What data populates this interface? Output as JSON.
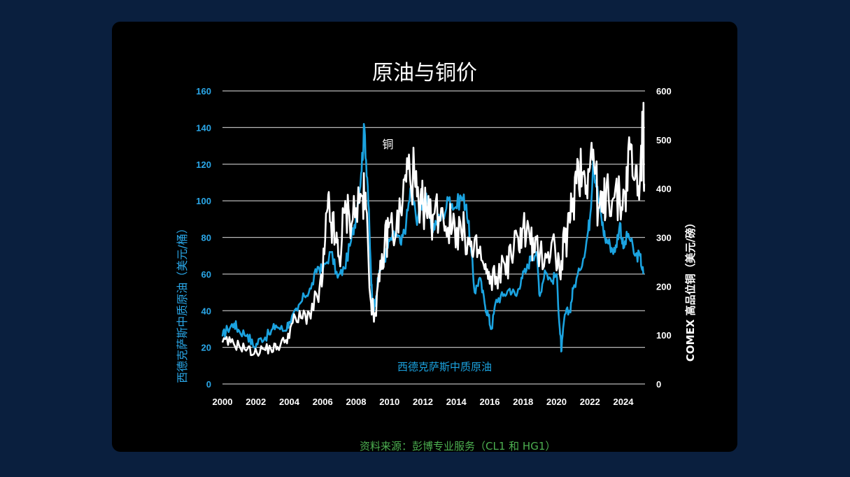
{
  "colors": {
    "page_bg": "#0a1f3e",
    "card_bg": "#000000",
    "oil": "#1ba3e0",
    "copper": "#ffffff",
    "left_axis": "#2aa7e8",
    "right_axis": "#ffffff",
    "source": "#4caf50"
  },
  "chart_data": {
    "type": "line",
    "title": "原油与铜价",
    "ylabel_left": "西德克萨斯中质原油（美元/桶）",
    "ylabel_right": "COMEX 高品位铜（美元/磅）",
    "source": "资料来源：彭博专业服务（CL1 和 HG1）",
    "x_ticks": [
      "2000",
      "2002",
      "2004",
      "2006",
      "2008",
      "2010",
      "2012",
      "2014",
      "2016",
      "2018",
      "2020",
      "2022",
      "2024"
    ],
    "xlim": [
      2000,
      2025.3
    ],
    "y_left_ticks": [
      "0",
      "20",
      "40",
      "60",
      "80",
      "100",
      "120",
      "140",
      "160"
    ],
    "y_left_lim": [
      0,
      160
    ],
    "y_right_ticks": [
      "0",
      "100",
      "200",
      "300",
      "400",
      "500",
      "600"
    ],
    "y_right_lim": [
      0,
      600
    ],
    "grid": true,
    "series": [
      {
        "name": "西德克萨斯中质原油",
        "axis": "left",
        "points": [
          [
            2000.0,
            26
          ],
          [
            2000.3,
            30
          ],
          [
            2000.7,
            33
          ],
          [
            2001.0,
            29
          ],
          [
            2001.5,
            27
          ],
          [
            2001.9,
            20
          ],
          [
            2002.3,
            25
          ],
          [
            2002.8,
            27
          ],
          [
            2003.2,
            32
          ],
          [
            2003.7,
            29
          ],
          [
            2004.0,
            34
          ],
          [
            2004.5,
            40
          ],
          [
            2004.9,
            48
          ],
          [
            2005.3,
            52
          ],
          [
            2005.7,
            64
          ],
          [
            2006.0,
            62
          ],
          [
            2006.5,
            72
          ],
          [
            2006.9,
            58
          ],
          [
            2007.3,
            63
          ],
          [
            2007.7,
            78
          ],
          [
            2008.0,
            92
          ],
          [
            2008.3,
            115
          ],
          [
            2008.5,
            140
          ],
          [
            2008.7,
            108
          ],
          [
            2008.9,
            58
          ],
          [
            2009.0,
            40
          ],
          [
            2009.2,
            48
          ],
          [
            2009.4,
            62
          ],
          [
            2009.7,
            68
          ],
          [
            2010.0,
            78
          ],
          [
            2010.4,
            82
          ],
          [
            2010.7,
            76
          ],
          [
            2011.0,
            88
          ],
          [
            2011.3,
            108
          ],
          [
            2011.6,
            90
          ],
          [
            2011.9,
            98
          ],
          [
            2012.2,
            104
          ],
          [
            2012.5,
            85
          ],
          [
            2012.8,
            88
          ],
          [
            2013.2,
            92
          ],
          [
            2013.6,
            102
          ],
          [
            2013.9,
            96
          ],
          [
            2014.3,
            102
          ],
          [
            2014.6,
            98
          ],
          [
            2014.9,
            72
          ],
          [
            2015.1,
            50
          ],
          [
            2015.4,
            58
          ],
          [
            2015.7,
            44
          ],
          [
            2015.9,
            38
          ],
          [
            2016.1,
            30
          ],
          [
            2016.4,
            46
          ],
          [
            2016.8,
            48
          ],
          [
            2017.2,
            52
          ],
          [
            2017.6,
            48
          ],
          [
            2017.9,
            58
          ],
          [
            2018.2,
            62
          ],
          [
            2018.5,
            70
          ],
          [
            2018.8,
            72
          ],
          [
            2019.0,
            48
          ],
          [
            2019.3,
            62
          ],
          [
            2019.7,
            56
          ],
          [
            2020.0,
            60
          ],
          [
            2020.2,
            30
          ],
          [
            2020.3,
            18
          ],
          [
            2020.5,
            38
          ],
          [
            2020.8,
            40
          ],
          [
            2021.0,
            52
          ],
          [
            2021.4,
            62
          ],
          [
            2021.8,
            78
          ],
          [
            2022.0,
            90
          ],
          [
            2022.2,
            122
          ],
          [
            2022.4,
            108
          ],
          [
            2022.7,
            90
          ],
          [
            2022.9,
            80
          ],
          [
            2023.2,
            76
          ],
          [
            2023.5,
            72
          ],
          [
            2023.8,
            88
          ],
          [
            2024.0,
            74
          ],
          [
            2024.3,
            82
          ],
          [
            2024.7,
            70
          ],
          [
            2025.0,
            70
          ],
          [
            2025.2,
            60
          ]
        ]
      },
      {
        "name": "铜",
        "axis": "right",
        "points": [
          [
            2000.0,
            85
          ],
          [
            2000.5,
            85
          ],
          [
            2001.0,
            78
          ],
          [
            2001.5,
            72
          ],
          [
            2001.9,
            62
          ],
          [
            2002.4,
            72
          ],
          [
            2002.9,
            72
          ],
          [
            2003.3,
            76
          ],
          [
            2003.8,
            90
          ],
          [
            2004.2,
            125
          ],
          [
            2004.7,
            135
          ],
          [
            2005.2,
            145
          ],
          [
            2005.7,
            175
          ],
          [
            2006.0,
            220
          ],
          [
            2006.3,
            360
          ],
          [
            2006.5,
            330
          ],
          [
            2006.8,
            290
          ],
          [
            2007.0,
            255
          ],
          [
            2007.3,
            350
          ],
          [
            2007.6,
            345
          ],
          [
            2008.0,
            360
          ],
          [
            2008.4,
            385
          ],
          [
            2008.6,
            360
          ],
          [
            2008.9,
            165
          ],
          [
            2009.1,
            140
          ],
          [
            2009.4,
            210
          ],
          [
            2009.7,
            280
          ],
          [
            2010.0,
            330
          ],
          [
            2010.4,
            310
          ],
          [
            2010.8,
            380
          ],
          [
            2011.1,
            440
          ],
          [
            2011.5,
            425
          ],
          [
            2011.8,
            330
          ],
          [
            2012.0,
            370
          ],
          [
            2012.4,
            340
          ],
          [
            2012.7,
            350
          ],
          [
            2013.1,
            360
          ],
          [
            2013.5,
            320
          ],
          [
            2013.9,
            330
          ],
          [
            2014.3,
            310
          ],
          [
            2014.7,
            300
          ],
          [
            2015.0,
            260
          ],
          [
            2015.3,
            275
          ],
          [
            2015.7,
            235
          ],
          [
            2016.0,
            205
          ],
          [
            2016.4,
            220
          ],
          [
            2016.9,
            245
          ],
          [
            2017.3,
            260
          ],
          [
            2017.7,
            300
          ],
          [
            2018.0,
            320
          ],
          [
            2018.4,
            300
          ],
          [
            2018.7,
            270
          ],
          [
            2019.0,
            265
          ],
          [
            2019.5,
            270
          ],
          [
            2019.9,
            285
          ],
          [
            2020.2,
            225
          ],
          [
            2020.5,
            290
          ],
          [
            2020.8,
            330
          ],
          [
            2021.0,
            380
          ],
          [
            2021.3,
            455
          ],
          [
            2021.6,
            430
          ],
          [
            2021.9,
            440
          ],
          [
            2022.2,
            480
          ],
          [
            2022.5,
            360
          ],
          [
            2022.8,
            350
          ],
          [
            2023.0,
            410
          ],
          [
            2023.4,
            380
          ],
          [
            2023.8,
            370
          ],
          [
            2024.1,
            390
          ],
          [
            2024.4,
            480
          ],
          [
            2024.7,
            420
          ],
          [
            2025.0,
            420
          ],
          [
            2025.2,
            525
          ],
          [
            2025.25,
            410
          ]
        ]
      }
    ],
    "annotations": [
      {
        "text": "铜",
        "x": 2009.9,
        "y_right": 490
      },
      {
        "text": "西德克萨斯中质原油",
        "x": 2013.3,
        "y_right": 35
      }
    ]
  }
}
